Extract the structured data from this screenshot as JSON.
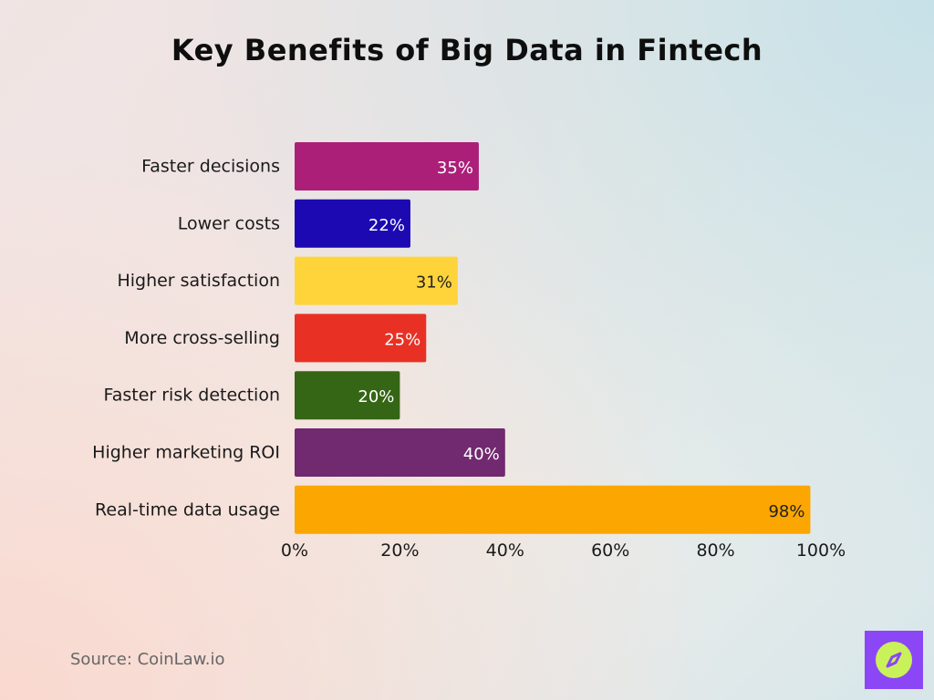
{
  "title": "Key Benefits of Big Data in Fintech",
  "source": "Source: CoinLaw.io",
  "logo_icon": "compass-icon",
  "chart_data": {
    "type": "bar",
    "orientation": "horizontal",
    "title": "Key Benefits of Big Data in Fintech",
    "categories": [
      "Faster decisions",
      "Lower costs",
      "Higher satisfaction",
      "More cross-selling",
      "Faster risk detection",
      "Higher marketing ROI",
      "Real-time data usage"
    ],
    "values": [
      35,
      22,
      31,
      25,
      20,
      40,
      98
    ],
    "value_labels": [
      "35%",
      "22%",
      "31%",
      "25%",
      "20%",
      "40%",
      "98%"
    ],
    "colors": [
      "#ac1f78",
      "#1c09b2",
      "#ffd43b",
      "#e83124",
      "#356615",
      "#71296f",
      "#fba601"
    ],
    "label_colors": [
      "#ffffff",
      "#ffffff",
      "#222222",
      "#ffffff",
      "#ffffff",
      "#ffffff",
      "#222222"
    ],
    "xlim": [
      0,
      100
    ],
    "xticks": [
      0,
      20,
      40,
      60,
      80,
      100
    ],
    "xtick_labels": [
      "0%",
      "20%",
      "40%",
      "60%",
      "80%",
      "100%"
    ],
    "grid": false,
    "legend": "none"
  }
}
